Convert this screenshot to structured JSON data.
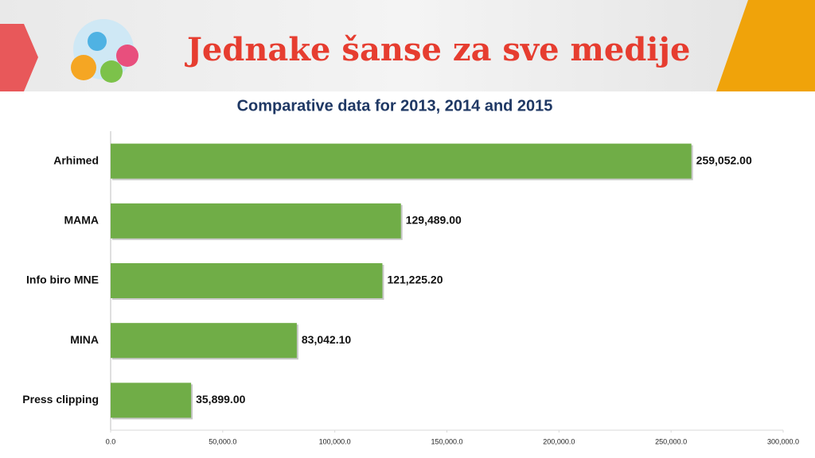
{
  "banner_title": "Jednake šanse za sve medije",
  "chart_data": {
    "type": "hbar",
    "title": "Comparative data for 2013, 2014 and 2015",
    "categories": [
      "Arhimed",
      "MAMA",
      "Info biro MNE",
      "MINA",
      "Press clipping"
    ],
    "values": [
      259052,
      129489,
      121225.2,
      83042.1,
      35899
    ],
    "value_labels": [
      "259,052.00",
      "129,489.00",
      "121,225.20",
      "83,042.10",
      "35,899.00"
    ],
    "color": "#70ad47",
    "xlim": [
      0,
      300000
    ],
    "xticks": [
      {
        "value": 0,
        "label": "0.0"
      },
      {
        "value": 50000,
        "label": "50,000.0"
      },
      {
        "value": 100000,
        "label": "100,000.0"
      },
      {
        "value": 150000,
        "label": "150,000.0"
      },
      {
        "value": 200000,
        "label": "200,000.0"
      },
      {
        "value": 250000,
        "label": "250,000.0"
      },
      {
        "value": 300000,
        "label": "300,000.0"
      }
    ],
    "grid": false
  }
}
